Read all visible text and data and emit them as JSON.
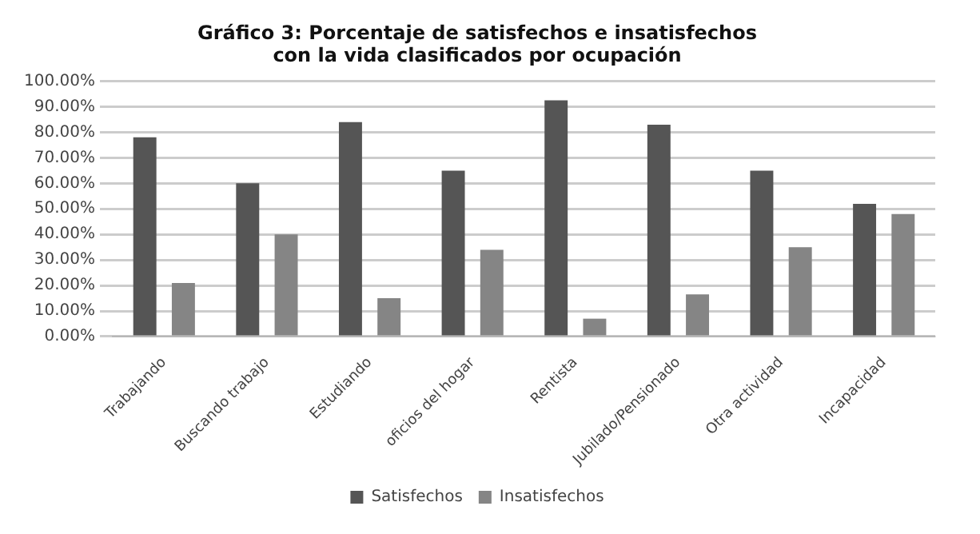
{
  "chart_data": {
    "type": "bar",
    "title": "Gráfico 3: Porcentaje de satisfechos e insatisfechos\ncon la vida clasificados por ocupación",
    "categories": [
      "Trabajando",
      "Buscando trabajo",
      "Estudiando",
      "oficios del hogar",
      "Rentista",
      "Jubilado/Pensionado",
      "Otra actividad",
      "Incapacidad"
    ],
    "series": [
      {
        "name": "Satisfechos",
        "color": "#555555",
        "values": [
          78,
          60,
          84,
          65,
          92.5,
          83,
          65,
          52
        ]
      },
      {
        "name": "Insatisfechos",
        "color": "#858585",
        "values": [
          21,
          40,
          15,
          34,
          7,
          16.5,
          35,
          48
        ]
      }
    ],
    "ylim": [
      0,
      100
    ],
    "yticks": [
      {
        "value": 0,
        "label": "0.00%"
      },
      {
        "value": 10,
        "label": "10.00%"
      },
      {
        "value": 20,
        "label": "20.00%"
      },
      {
        "value": 30,
        "label": "30.00%"
      },
      {
        "value": 40,
        "label": "40.00%"
      },
      {
        "value": 50,
        "label": "50.00%"
      },
      {
        "value": 60,
        "label": "60.00%"
      },
      {
        "value": 70,
        "label": "70.00%"
      },
      {
        "value": 80,
        "label": "80.00%"
      },
      {
        "value": 90,
        "label": "90.00%"
      },
      {
        "value": 100,
        "label": "100.00%"
      }
    ],
    "grid": "y",
    "legend": "bottom"
  }
}
